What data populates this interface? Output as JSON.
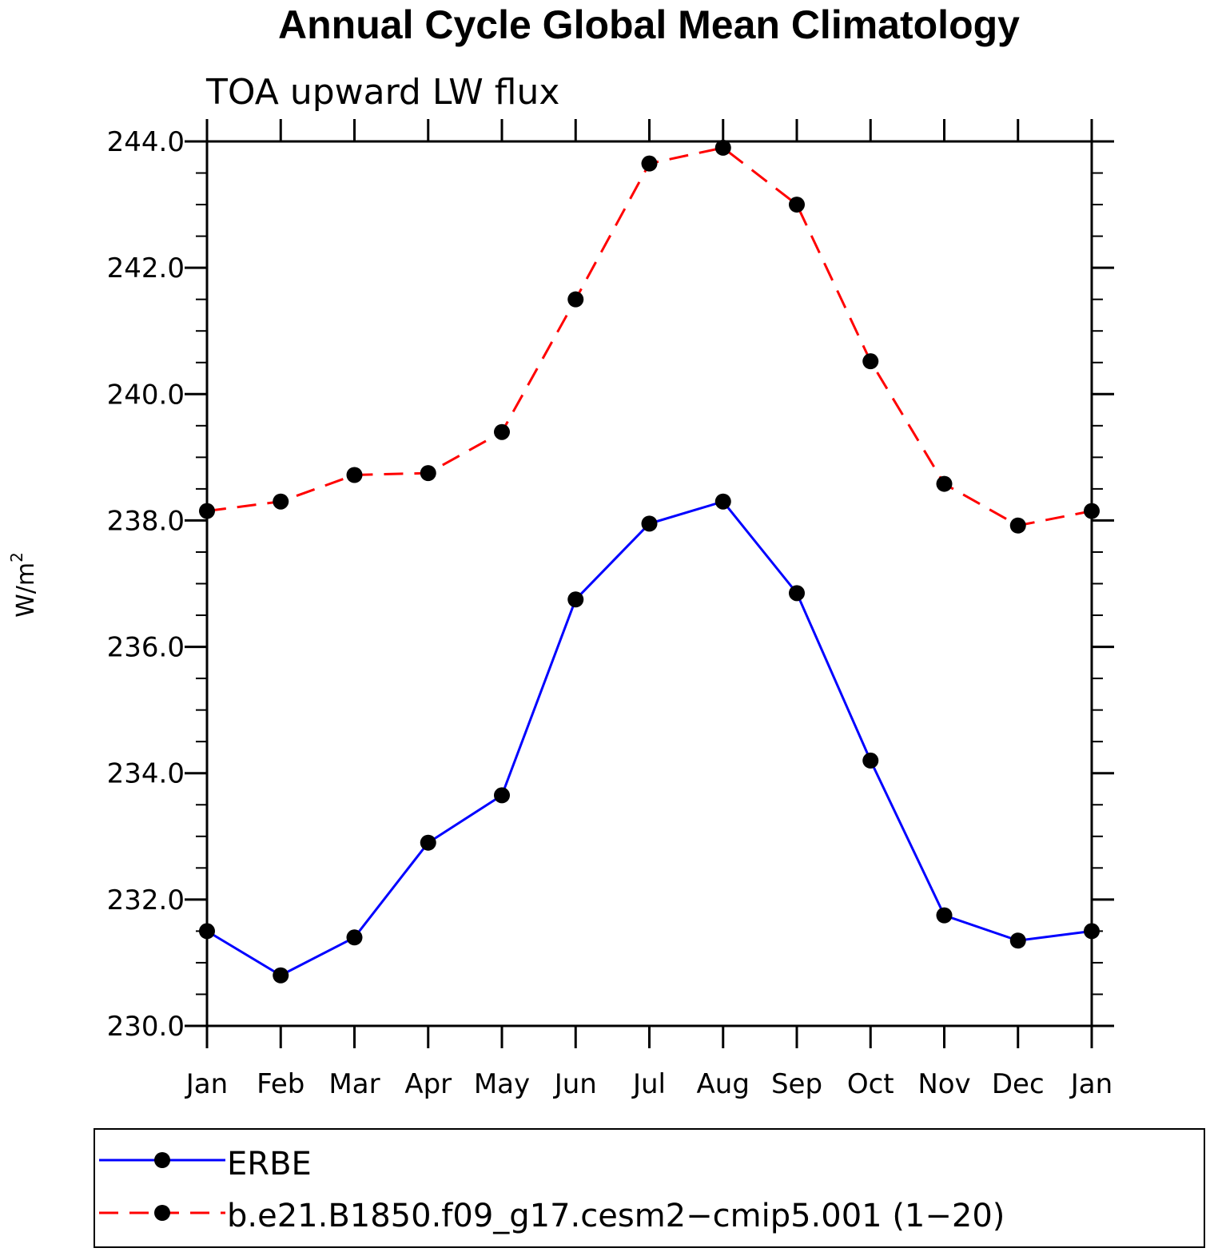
{
  "chart_data": {
    "type": "line",
    "title": "Annual Cycle Global Mean Climatology",
    "subtitle": "TOA upward LW flux",
    "ylabel": "W/m",
    "ylabel_sup": "2",
    "categories": [
      "Jan",
      "Feb",
      "Mar",
      "Apr",
      "May",
      "Jun",
      "Jul",
      "Aug",
      "Sep",
      "Oct",
      "Nov",
      "Dec",
      "Jan"
    ],
    "ylim": [
      230.0,
      244.0
    ],
    "yticks": [
      "230.0",
      "232.0",
      "234.0",
      "236.0",
      "238.0",
      "240.0",
      "242.0",
      "244.0"
    ],
    "series": [
      {
        "name": "ERBE",
        "color": "#0000ff",
        "style": "solid",
        "marker": "filled-circle",
        "values": [
          231.5,
          230.8,
          231.4,
          232.9,
          233.65,
          236.75,
          237.95,
          238.3,
          236.85,
          234.2,
          231.75,
          231.35,
          231.5
        ]
      },
      {
        "name": "b.e21.B1850.f09_g17.cesm2−cmip5.001 (1−20)",
        "color": "#ff0000",
        "style": "dashed",
        "marker": "filled-circle",
        "values": [
          238.15,
          238.3,
          238.72,
          238.75,
          239.4,
          241.5,
          243.65,
          243.9,
          243.0,
          240.52,
          238.58,
          237.92,
          238.15
        ]
      }
    ],
    "grid": false,
    "legend_position": "bottom"
  }
}
